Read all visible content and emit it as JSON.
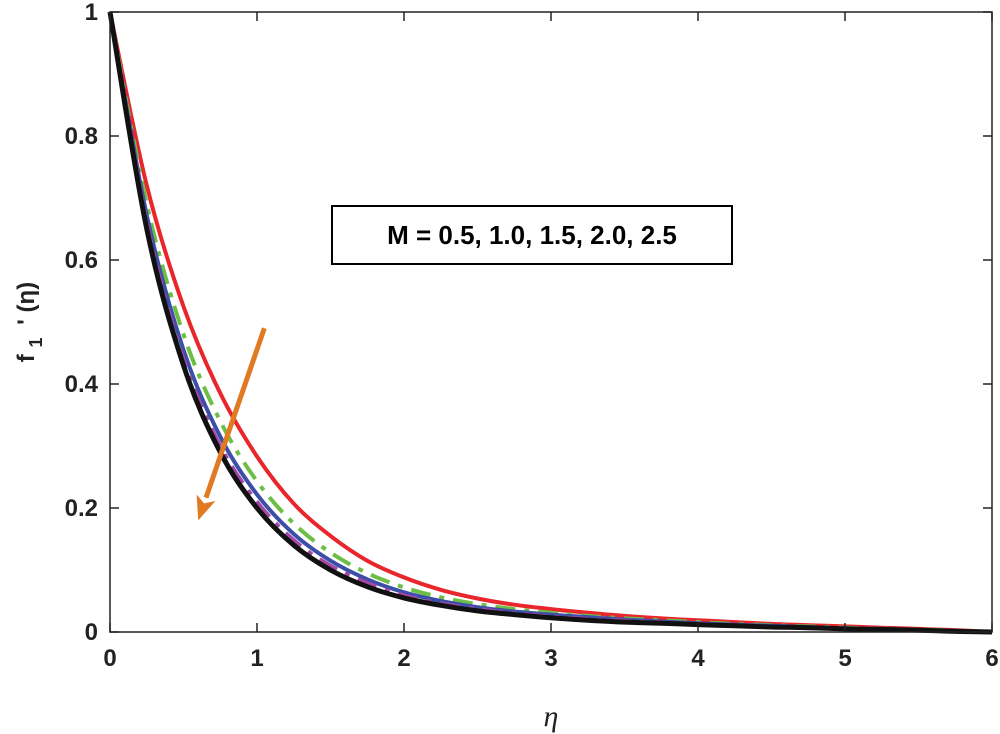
{
  "chart_data": {
    "type": "line",
    "xlabel": "η",
    "ylabel": {
      "base": "f",
      "subscript": "1",
      "rest": "' (η)"
    },
    "xlim": [
      0,
      6
    ],
    "ylim": [
      0,
      1
    ],
    "xticks": [
      "0",
      "1",
      "2",
      "3",
      "4",
      "5",
      "6"
    ],
    "yticks": [
      "0",
      "0.2",
      "0.4",
      "0.6",
      "0.8",
      "1"
    ],
    "grid": false,
    "box": true,
    "annotation": {
      "text": "M = 0.5, 1.0, 1.5, 2.0, 2.5",
      "arrow_from": [
        1.05,
        0.49
      ],
      "arrow_to": [
        0.6,
        0.18
      ],
      "arrow_color": "#E07B24"
    },
    "x": [
      0,
      0.25,
      0.5,
      0.75,
      1,
      1.25,
      1.5,
      1.75,
      2,
      2.25,
      2.5,
      2.75,
      3,
      3.25,
      3.5,
      3.75,
      4,
      4.25,
      4.5,
      4.75,
      5,
      5.25,
      5.5,
      5.75,
      6
    ],
    "series": [
      {
        "color": "#E8262B",
        "dash": "solid",
        "values": [
          1.0,
          0.72,
          0.525,
          0.385,
          0.283,
          0.207,
          0.155,
          0.115,
          0.088,
          0.068,
          0.054,
          0.044,
          0.037,
          0.031,
          0.026,
          0.022,
          0.019,
          0.016,
          0.013,
          0.011,
          0.009,
          0.007,
          0.005,
          0.003,
          0.0
        ]
      },
      {
        "color": "#6DBE45",
        "dash": "dashdot",
        "values": [
          1.0,
          0.69,
          0.48,
          0.34,
          0.243,
          0.175,
          0.128,
          0.095,
          0.072,
          0.056,
          0.045,
          0.037,
          0.031,
          0.026,
          0.022,
          0.019,
          0.016,
          0.013,
          0.011,
          0.009,
          0.007,
          0.005,
          0.004,
          0.002,
          0.0
        ]
      },
      {
        "color": "#3C4FA8",
        "dash": "solid",
        "values": [
          1.0,
          0.672,
          0.455,
          0.315,
          0.222,
          0.158,
          0.115,
          0.085,
          0.064,
          0.05,
          0.04,
          0.033,
          0.028,
          0.024,
          0.02,
          0.017,
          0.014,
          0.012,
          0.01,
          0.008,
          0.006,
          0.005,
          0.003,
          0.002,
          0.0
        ]
      },
      {
        "color": "#A347A7",
        "dash": "dashdot",
        "values": [
          1.0,
          0.66,
          0.44,
          0.3,
          0.21,
          0.148,
          0.107,
          0.079,
          0.059,
          0.046,
          0.037,
          0.03,
          0.025,
          0.021,
          0.018,
          0.015,
          0.013,
          0.011,
          0.009,
          0.007,
          0.006,
          0.004,
          0.003,
          0.002,
          0.0
        ]
      },
      {
        "color": "#111111",
        "dash": "solid",
        "values": [
          1.0,
          0.65,
          0.43,
          0.29,
          0.2,
          0.14,
          0.1,
          0.073,
          0.055,
          0.043,
          0.034,
          0.028,
          0.023,
          0.019,
          0.016,
          0.014,
          0.012,
          0.01,
          0.008,
          0.007,
          0.005,
          0.004,
          0.003,
          0.001,
          0.0
        ]
      }
    ]
  }
}
